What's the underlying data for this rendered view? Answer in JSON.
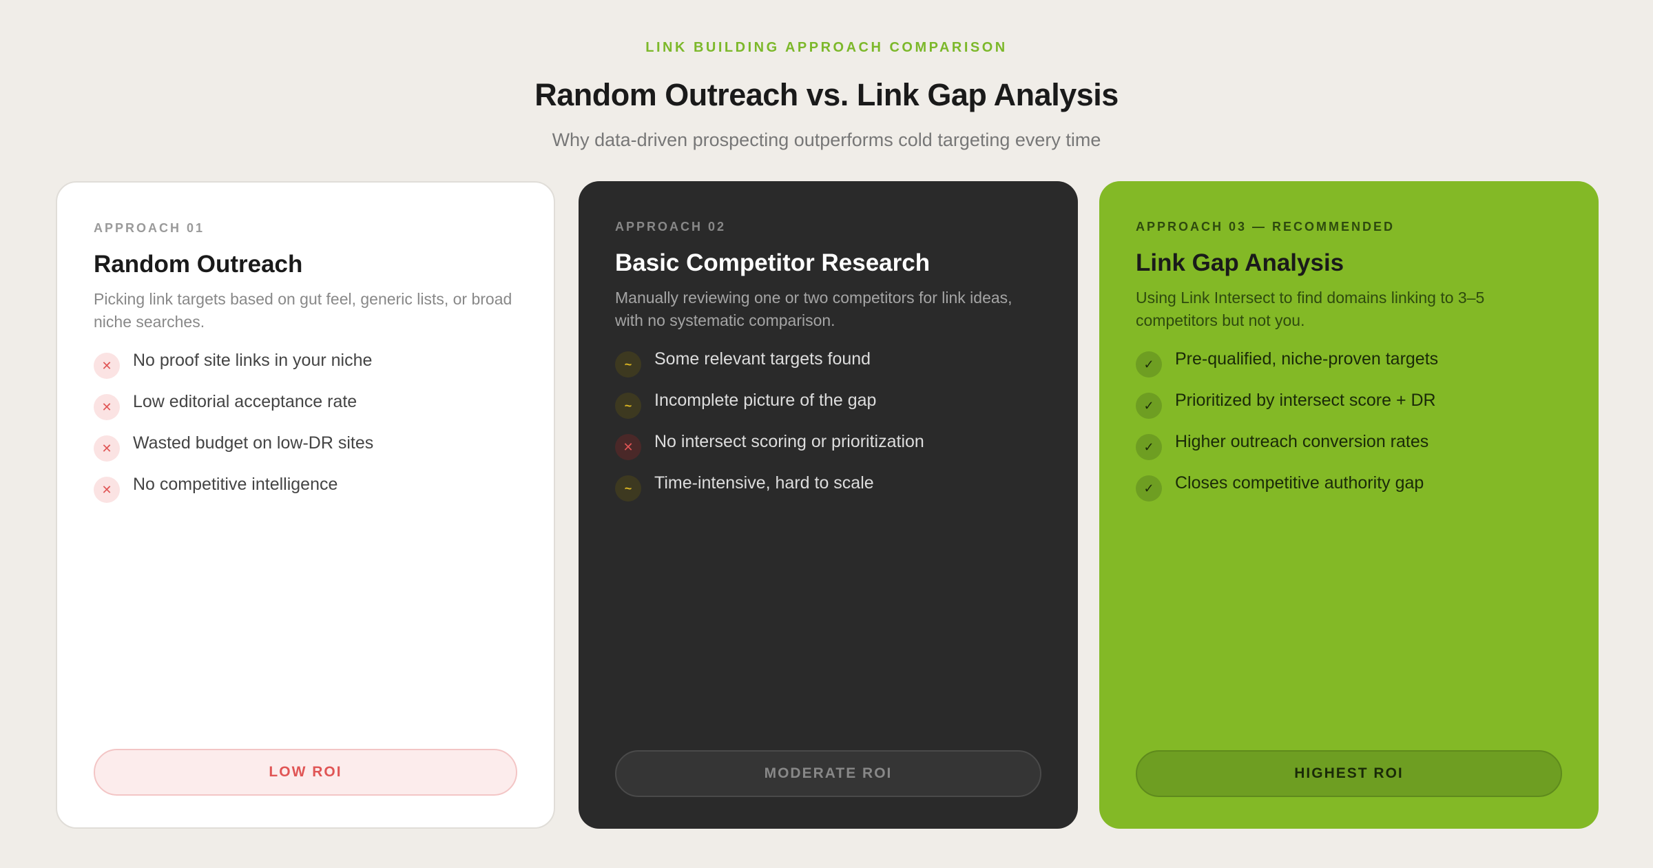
{
  "header": {
    "kicker": "LINK BUILDING APPROACH COMPARISON",
    "title": "Random Outreach vs. Link Gap Analysis",
    "subtitle": "Why data-driven prospecting outperforms cold targeting every time"
  },
  "cards": [
    {
      "label": "APPROACH 01",
      "title": "Random Outreach",
      "description": "Picking link targets based on gut feel, generic lists, or broad niche searches.",
      "items": [
        {
          "icon": "x-icon",
          "text": "No proof site links in your niche"
        },
        {
          "icon": "x-icon",
          "text": "Low editorial acceptance rate"
        },
        {
          "icon": "x-icon",
          "text": "Wasted budget on low-DR sites"
        },
        {
          "icon": "x-icon",
          "text": "No competitive intelligence"
        }
      ],
      "button": "LOW ROI"
    },
    {
      "label": "APPROACH 02",
      "title": "Basic Competitor Research",
      "description": "Manually reviewing one or two competitors for link ideas, with no systematic comparison.",
      "items": [
        {
          "icon": "tilde-icon",
          "text": "Some relevant targets found"
        },
        {
          "icon": "tilde-icon",
          "text": "Incomplete picture of the gap"
        },
        {
          "icon": "x-icon",
          "text": "No intersect scoring or prioritization"
        },
        {
          "icon": "tilde-icon",
          "text": "Time-intensive, hard to scale"
        }
      ],
      "button": "MODERATE ROI"
    },
    {
      "label": "APPROACH 03 — RECOMMENDED",
      "title": "Link Gap Analysis",
      "description": "Using Link Intersect to find domains linking to 3–5 competitors but not you.",
      "items": [
        {
          "icon": "check-icon",
          "text": "Pre-qualified, niche-proven targets"
        },
        {
          "icon": "check-icon",
          "text": "Prioritized by intersect score + DR"
        },
        {
          "icon": "check-icon",
          "text": "Higher outreach conversion rates"
        },
        {
          "icon": "check-icon",
          "text": "Closes competitive authority gap"
        }
      ],
      "button": "HIGHEST ROI"
    }
  ],
  "colors": {
    "accent": "#83b926",
    "dark": "#2a2a2a",
    "negative": "#e05555",
    "neutral": "#d9b422"
  }
}
